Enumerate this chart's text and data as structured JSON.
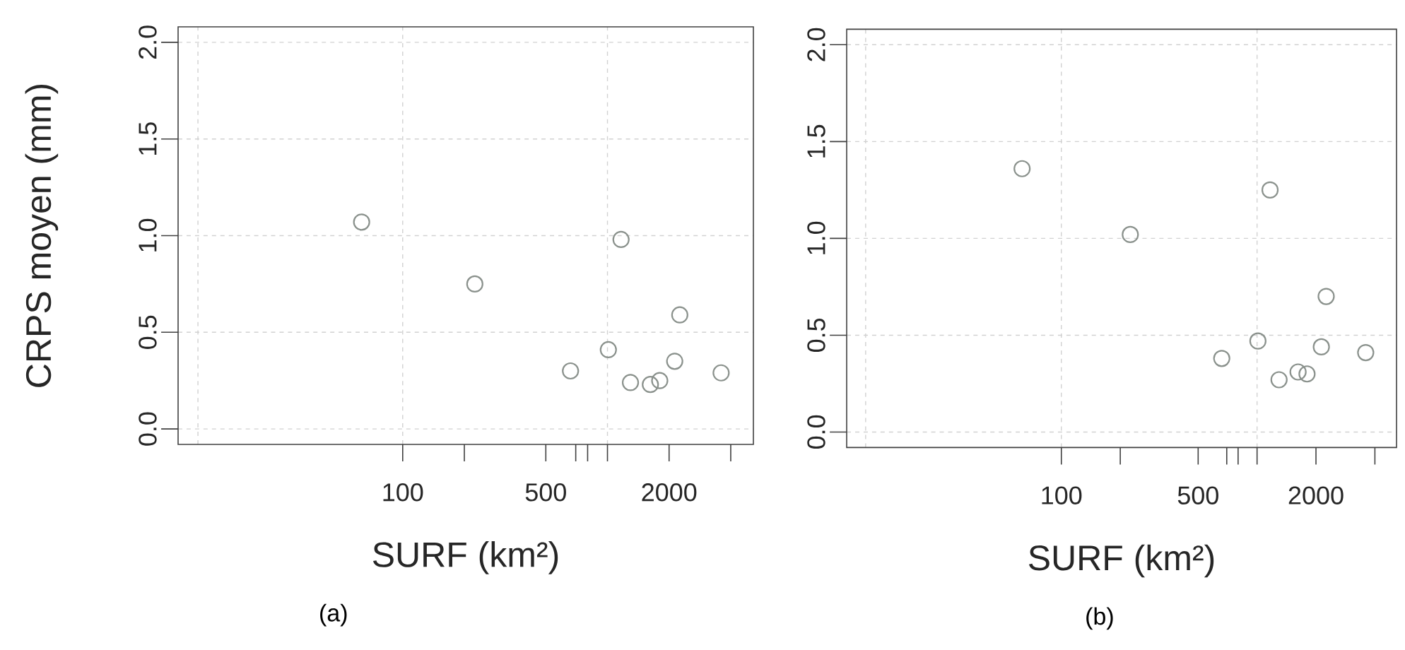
{
  "chart_data": [
    {
      "type": "scatter",
      "xlabel": "SURF (km²)",
      "ylabel": "CRPS moyen (mm)",
      "annotations": [
        "(a)"
      ],
      "log": "x",
      "grid": true,
      "marker": "circle",
      "color": "#8a918c",
      "xlim": [
        8,
        5160
      ],
      "ylim": [
        -0.08,
        2.08
      ],
      "xticks": [
        100,
        {
          "value": 200,
          "label": null
        },
        500,
        {
          "value": 700,
          "label": null
        },
        {
          "value": 800,
          "label": null
        },
        {
          "value": 1000,
          "label": null
        },
        2000,
        {
          "value": 4000,
          "label": null
        }
      ],
      "yticks": [
        {
          "value": 0,
          "label": "0.0"
        },
        {
          "value": 0.5,
          "label": "0.5"
        },
        {
          "value": 1,
          "label": "1.0"
        },
        {
          "value": 1.5,
          "label": "1.5"
        },
        {
          "value": 2,
          "label": "2.0"
        }
      ],
      "x": [
        63,
        225,
        660,
        1010,
        1165,
        1295,
        1620,
        1800,
        2130,
        2255,
        3590
      ],
      "values": [
        1.07,
        0.75,
        0.3,
        0.41,
        0.98,
        0.24,
        0.23,
        0.25,
        0.35,
        0.59,
        0.29
      ]
    },
    {
      "type": "scatter",
      "xlabel": "SURF (km²)",
      "annotations": [
        "(b)"
      ],
      "log": "x",
      "grid": true,
      "marker": "circle",
      "color": "#8a918c",
      "xlim": [
        8,
        5160
      ],
      "ylim": [
        -0.08,
        2.08
      ],
      "xticks": [
        100,
        {
          "value": 200,
          "label": null
        },
        500,
        {
          "value": 700,
          "label": null
        },
        {
          "value": 800,
          "label": null
        },
        {
          "value": 1000,
          "label": null
        },
        2000,
        {
          "value": 4000,
          "label": null
        }
      ],
      "yticks": [
        {
          "value": 0,
          "label": "0.0"
        },
        {
          "value": 0.5,
          "label": "0.5"
        },
        {
          "value": 1,
          "label": "1.0"
        },
        {
          "value": 1.5,
          "label": "1.5"
        },
        {
          "value": 2,
          "label": "2.0"
        }
      ],
      "x": [
        63,
        225,
        660,
        1010,
        1165,
        1295,
        1620,
        1800,
        2130,
        2255,
        3590
      ],
      "values": [
        1.36,
        1.02,
        0.38,
        0.47,
        1.25,
        0.27,
        0.31,
        0.3,
        0.44,
        0.7,
        0.41
      ]
    }
  ]
}
